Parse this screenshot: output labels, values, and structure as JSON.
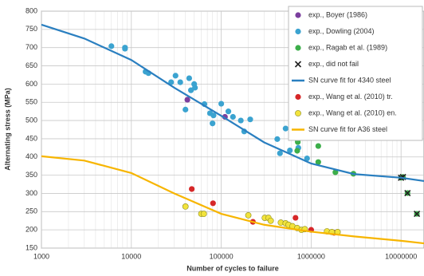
{
  "chart_data": {
    "type": "scatter",
    "x_label": "Number of cycles to failure",
    "y_label": "Alternating stress (MPa)",
    "xscale": "log",
    "xlim": [
      1000,
      18000000
    ],
    "ylim": [
      150,
      800
    ],
    "xticks": [
      1000,
      10000,
      100000,
      1000000,
      10000000
    ],
    "yticks": [
      150,
      200,
      250,
      300,
      350,
      400,
      450,
      500,
      550,
      600,
      650,
      700,
      750,
      800
    ],
    "grid": true,
    "legend": "top-right",
    "series": [
      {
        "name": "exp., Boyer (1986)",
        "marker": "circle",
        "color": "#7b3f9e",
        "x": [
          42000,
          110000
        ],
        "values": [
          557,
          510
        ]
      },
      {
        "name": "exp., Dowling (2004)",
        "marker": "circle",
        "color": "#3ba3d0",
        "x": [
          6000,
          8500,
          8500,
          14400,
          15500,
          27700,
          31000,
          35000,
          44000,
          46000,
          51000,
          50000,
          40000,
          65000,
          75000,
          80000,
          82000,
          100000,
          120000,
          135000,
          165000,
          180000,
          210000,
          420000,
          450000,
          520000,
          580000,
          720000,
          900000
        ],
        "values": [
          704,
          700,
          697,
          634,
          630,
          605,
          623,
          605,
          616,
          583,
          590,
          600,
          530,
          545,
          520,
          492,
          514,
          546,
          525,
          510,
          500,
          470,
          503,
          449,
          410,
          478,
          418,
          425,
          396
        ]
      },
      {
        "name": "exp., Ragab et al. (1989)",
        "marker": "circle",
        "color": "#3cae4a",
        "x": [
          710000,
          710000,
          700000,
          1200000,
          1200000,
          1860000,
          2950000,
          10000000,
          10500000,
          11800000,
          15000000
        ],
        "values": [
          445,
          441,
          417,
          430,
          386,
          358,
          354,
          343,
          345,
          301,
          244
        ]
      },
      {
        "name": "exp., did not fail",
        "marker": "cross",
        "color": "#222222",
        "x": [
          10000000,
          10500000,
          11800000,
          15000000
        ],
        "values": [
          343,
          345,
          301,
          244
        ]
      },
      {
        "name": "SN curve fit for 4340 steel",
        "marker": "line",
        "color": "#2a7fc0",
        "x": [
          1000,
          3000,
          10000,
          30000,
          100000,
          300000,
          1000000,
          3000000,
          10000000,
          18000000
        ],
        "values": [
          763,
          725,
          666,
          590,
          513,
          440,
          382,
          353,
          343,
          334
        ]
      },
      {
        "name": "exp., Wang et al. (2010) tr.",
        "marker": "circle",
        "color": "#d62728",
        "x": [
          47000,
          81000,
          225000,
          670000,
          1000000,
          1800000
        ],
        "values": [
          312,
          273,
          222,
          233,
          200,
          192
        ]
      },
      {
        "name": "exp., Wang et al. (2010) en.",
        "marker": "circle",
        "color": "#f2e33c",
        "x": [
          40000,
          60000,
          64000,
          200000,
          305000,
          335000,
          355000,
          460000,
          520000,
          560000,
          620000,
          700000,
          780000,
          850000,
          1500000,
          1700000,
          1970000
        ],
        "values": [
          264,
          244,
          244,
          240,
          233,
          233,
          225,
          220,
          218,
          214,
          210,
          205,
          200,
          202,
          196,
          194,
          194
        ]
      },
      {
        "name": "SN curve fit for A36 steel",
        "marker": "line",
        "color": "#f7b500",
        "x": [
          1000,
          3000,
          10000,
          30000,
          100000,
          300000,
          1000000,
          3000000,
          10000000,
          18000000
        ],
        "values": [
          402,
          390,
          356,
          300,
          244,
          214,
          195,
          182,
          170,
          163
        ]
      }
    ]
  }
}
